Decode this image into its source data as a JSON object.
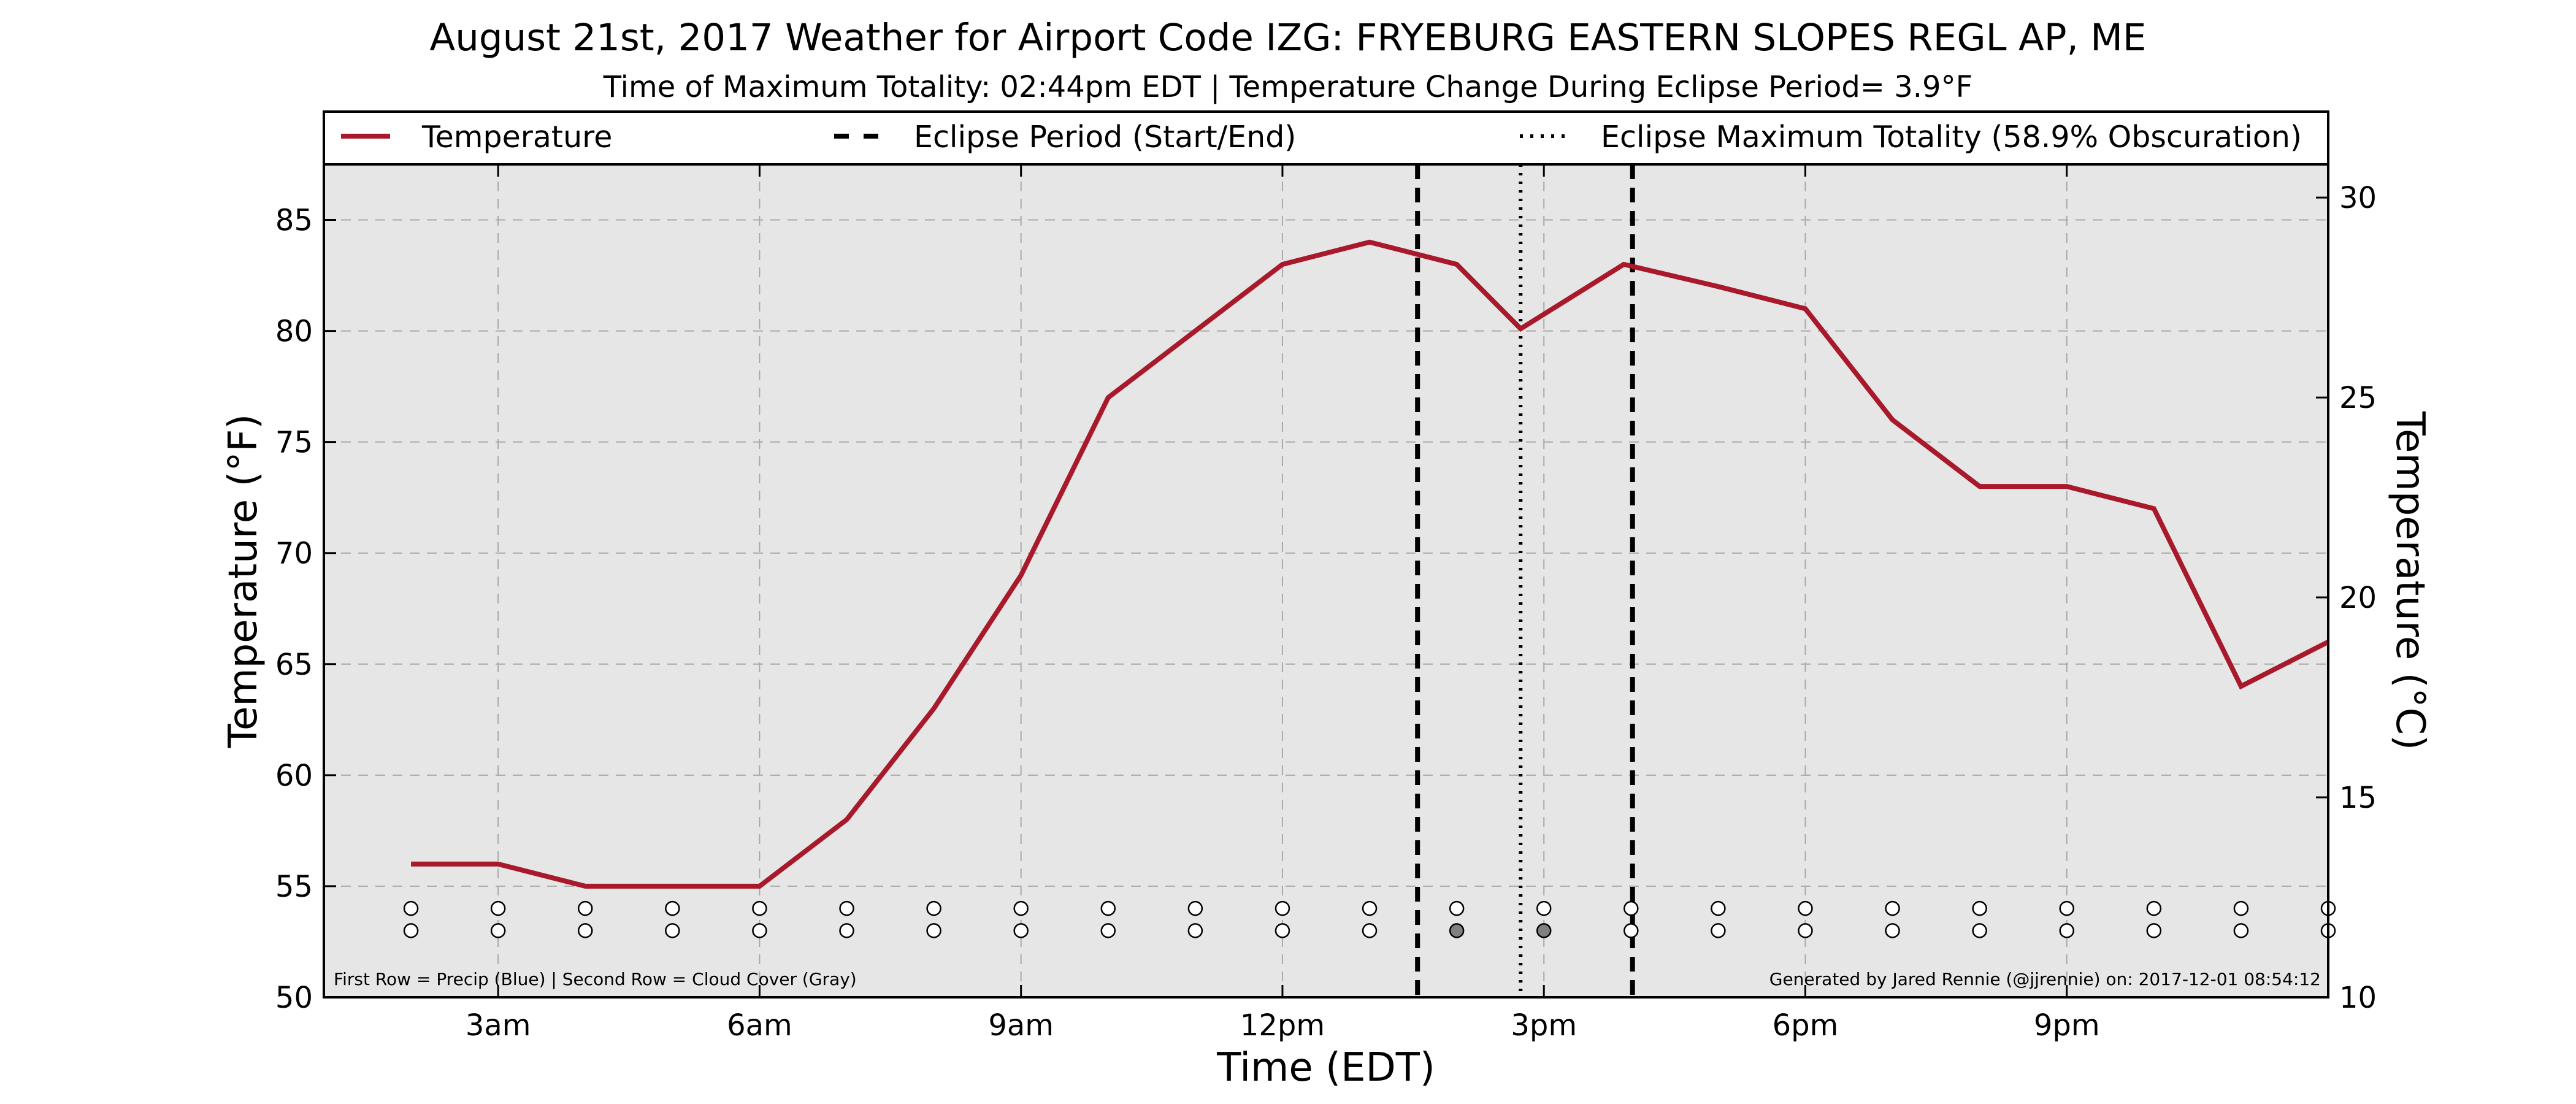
{
  "chart_data": {
    "type": "line",
    "title": "August 21st, 2017 Weather for Airport Code IZG: FRYEBURG EASTERN SLOPES REGL AP, ME",
    "subtitle": "Time of Maximum Totality: 02:44pm EDT | Temperature Change During Eclipse Period= 3.9°F",
    "xlabel": "Time (EDT)",
    "ylabel": "Temperature (°F)",
    "ylabel_right": "Temperature (°C)",
    "xlim": [
      1,
      24
    ],
    "ylim": [
      50,
      87.5
    ],
    "ylim_right": [
      10,
      30.83
    ],
    "grid": true,
    "x_ticks": [
      {
        "x": 3,
        "label": "3am"
      },
      {
        "x": 6,
        "label": "6am"
      },
      {
        "x": 9,
        "label": "9am"
      },
      {
        "x": 12,
        "label": "12pm"
      },
      {
        "x": 15,
        "label": "3pm"
      },
      {
        "x": 18,
        "label": "6pm"
      },
      {
        "x": 21,
        "label": "9pm"
      }
    ],
    "y_ticks": [
      {
        "y": 50,
        "label": "50"
      },
      {
        "y": 55,
        "label": "55"
      },
      {
        "y": 60,
        "label": "60"
      },
      {
        "y": 65,
        "label": "65"
      },
      {
        "y": 70,
        "label": "70"
      },
      {
        "y": 75,
        "label": "75"
      },
      {
        "y": 80,
        "label": "80"
      },
      {
        "y": 85,
        "label": "85"
      }
    ],
    "y_ticks_right": [
      {
        "y": 10,
        "label": "10"
      },
      {
        "y": 15,
        "label": "15"
      },
      {
        "y": 20,
        "label": "20"
      },
      {
        "y": 25,
        "label": "25"
      },
      {
        "y": 30,
        "label": "30"
      }
    ],
    "series": [
      {
        "name": "Temperature",
        "color": "#a8192b",
        "x": [
          2,
          3,
          4,
          5,
          6,
          7,
          8,
          9,
          10,
          11,
          12,
          13,
          14,
          14.733,
          15.917,
          17,
          18,
          19,
          20,
          21,
          22,
          23,
          24
        ],
        "y": [
          56,
          56,
          55,
          55,
          55,
          58,
          63,
          69,
          77,
          80,
          83,
          84,
          83,
          80.1,
          83,
          82,
          81,
          76,
          73,
          73,
          72,
          64,
          66
        ]
      }
    ],
    "eclipse_start": 13.55,
    "eclipse_end": 16.017,
    "eclipse_max": 14.733,
    "legend": {
      "placement": "top-outside",
      "entries": [
        {
          "label": "Temperature",
          "style": "solid",
          "color": "#a8192b"
        },
        {
          "label": "Eclipse Period (Start/End)",
          "style": "dashed",
          "color": "#000000"
        },
        {
          "label": "Eclipse Maximum Totality (58.9% Obscuration)",
          "style": "dotted",
          "color": "#000000"
        }
      ]
    },
    "markers": {
      "x": [
        2,
        3,
        4,
        5,
        6,
        7,
        8,
        9,
        10,
        11,
        12,
        13,
        14,
        15,
        16,
        17,
        18,
        19,
        20,
        21,
        22,
        23,
        24
      ],
      "precip_row_y": 54,
      "cloud_row_y": 53,
      "precip": [
        0,
        0,
        0,
        0,
        0,
        0,
        0,
        0,
        0,
        0,
        0,
        0,
        0,
        0,
        0,
        0,
        0,
        0,
        0,
        0,
        0,
        0,
        0
      ],
      "cloud": [
        0,
        0,
        0,
        0,
        0,
        0,
        0,
        0,
        0,
        0,
        0,
        0,
        1,
        1,
        0,
        0,
        0,
        0,
        0,
        0,
        0,
        0,
        0
      ],
      "empty_color": "#ffffff",
      "cloud_color": "#808080"
    },
    "note_left": "First Row = Precip (Blue) | Second Row = Cloud Cover (Gray)",
    "note_right": "Generated by Jared Rennie (@jjrennie) on: 2017-12-01 08:54:12"
  }
}
